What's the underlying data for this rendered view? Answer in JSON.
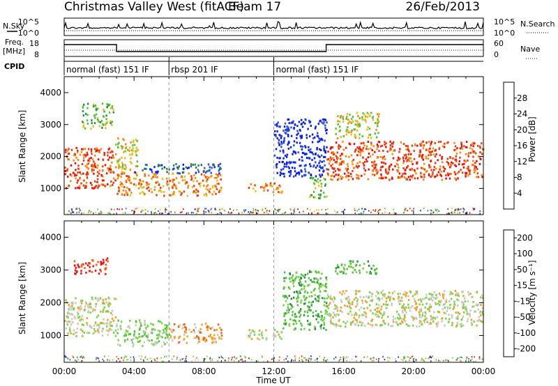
{
  "header": {
    "station": "Christmas Valley West (fitACF)",
    "beam": "Beam 17",
    "date": "26/Feb/2013"
  },
  "panels": {
    "nsky": {
      "left_label": "N.Sky",
      "right_label": "N.Search",
      "left_ticks": [
        "10^5",
        "10^0"
      ],
      "right_ticks": [
        "10^5",
        "10^0"
      ]
    },
    "freq": {
      "left_label_1": "Freq.",
      "left_label_2": "[MHz]",
      "right_label": "Nave",
      "left_ticks": [
        "18",
        "8"
      ],
      "right_ticks": [
        "60",
        "0"
      ]
    },
    "cpid": {
      "label": "CPID",
      "segments": [
        {
          "start_h": 0,
          "end_h": 6,
          "text": "normal (fast) 151 IF"
        },
        {
          "start_h": 6,
          "end_h": 12,
          "text": "rbsp 201 IF"
        },
        {
          "start_h": 12,
          "end_h": 24,
          "text": "normal (fast) 151 IF"
        }
      ]
    }
  },
  "chart_data": [
    {
      "type": "heatmap",
      "title": "",
      "xlabel": "",
      "ylabel": "Slant Range [km]",
      "x_range_hours": [
        0,
        24
      ],
      "y_range_km": [
        180,
        4500
      ],
      "y_ticks": [
        "1000",
        "2000",
        "3000",
        "4000"
      ],
      "colorbar": {
        "label": "Power [dB]",
        "tick_labels": [
          "4",
          "8",
          "12",
          "16",
          "20",
          "24",
          "28"
        ],
        "colors": [
          "#0a1ee6",
          "#2d4fd4",
          "#2a8a4a",
          "#52c23a",
          "#e0c020",
          "#f58a10",
          "#ea3a10",
          "#e60a0a"
        ]
      },
      "echo_regions": [
        {
          "t0": 0.0,
          "t1": 2.9,
          "r0": 1000,
          "r1": 2300,
          "level": 6
        },
        {
          "t0": 1.0,
          "t1": 2.8,
          "r0": 2900,
          "r1": 3700,
          "level": 3
        },
        {
          "t0": 2.9,
          "t1": 4.2,
          "r0": 1500,
          "r1": 2600,
          "level": 4
        },
        {
          "t0": 3.0,
          "t1": 9.0,
          "r0": 800,
          "r1": 1500,
          "level": 5
        },
        {
          "t0": 4.0,
          "t1": 9.0,
          "r0": 1500,
          "r1": 1800,
          "level": 1
        },
        {
          "t0": 10.5,
          "t1": 12.5,
          "r0": 900,
          "r1": 1200,
          "level": 5
        },
        {
          "t0": 12.0,
          "t1": 15.0,
          "r0": 1400,
          "r1": 3200,
          "level": 0
        },
        {
          "t0": 14.0,
          "t1": 15.0,
          "r0": 700,
          "r1": 1400,
          "level": 3
        },
        {
          "t0": 15.0,
          "t1": 24.0,
          "r0": 1300,
          "r1": 2500,
          "level": 6
        },
        {
          "t0": 15.5,
          "t1": 18.0,
          "r0": 2600,
          "r1": 3400,
          "level": 4
        }
      ]
    },
    {
      "type": "heatmap",
      "title": "",
      "xlabel": "Time UT",
      "ylabel": "Slant Range [km]",
      "x_range_hours": [
        0,
        24
      ],
      "y_range_km": [
        180,
        4500
      ],
      "x_ticks": [
        "00:00",
        "04:00",
        "08:00",
        "12:00",
        "16:00",
        "20:00",
        "00:00"
      ],
      "y_ticks": [
        "1000",
        "2000",
        "3000",
        "4000"
      ],
      "colorbar": {
        "label": "Velocity [m s⁻¹]",
        "tick_labels": [
          "200",
          "100",
          "50",
          "15",
          "-15",
          "-50",
          "-100",
          "-200"
        ],
        "colors": [
          "#1020c8",
          "#2a8a4a",
          "#52c23a",
          "#7ad24a",
          "#c8c8c0",
          "#f5a020",
          "#f06010",
          "#e61414"
        ]
      },
      "echo_regions": [
        {
          "t0": 0.0,
          "t1": 3.0,
          "r0": 1000,
          "r1": 2200,
          "level": 4
        },
        {
          "t0": 0.5,
          "t1": 2.5,
          "r0": 2900,
          "r1": 3400,
          "level": 7
        },
        {
          "t0": 3.0,
          "t1": 6.0,
          "r0": 700,
          "r1": 1500,
          "level": 3
        },
        {
          "t0": 6.0,
          "t1": 9.0,
          "r0": 800,
          "r1": 1400,
          "level": 5
        },
        {
          "t0": 10.5,
          "t1": 12.5,
          "r0": 900,
          "r1": 1200,
          "level": 4
        },
        {
          "t0": 12.5,
          "t1": 15.0,
          "r0": 1200,
          "r1": 3000,
          "level": 2
        },
        {
          "t0": 15.0,
          "t1": 24.0,
          "r0": 1300,
          "r1": 2400,
          "level": 4
        },
        {
          "t0": 15.5,
          "t1": 18.0,
          "r0": 2900,
          "r1": 3300,
          "level": 2
        }
      ]
    }
  ]
}
